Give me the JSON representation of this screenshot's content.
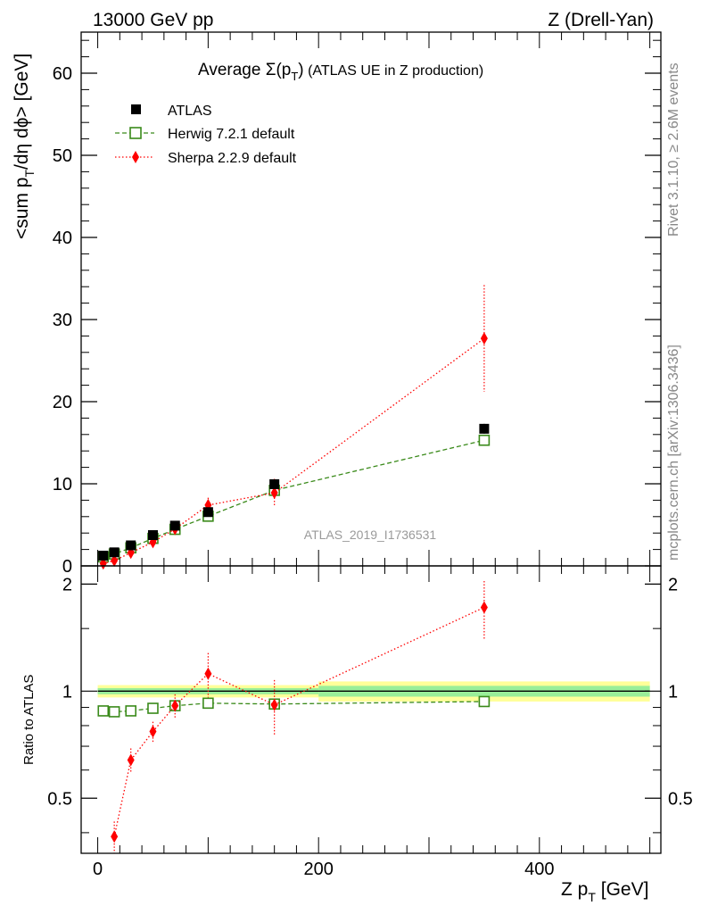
{
  "header": {
    "left": "13000 GeV pp",
    "right": "Z (Drell-Yan)"
  },
  "side_labels": {
    "rivet": "Rivet 3.1.10, ≥ 2.6M events",
    "mcplots": "mcplots.cern.ch [arXiv:1306.3436]"
  },
  "colors": {
    "atlas": "#000000",
    "herwig": "#3a8a1a",
    "sherpa": "#ff0000",
    "band_outer": "#ffff99",
    "band_inner": "#99ee99"
  },
  "chart_data": [
    {
      "type": "scatter",
      "title_main": "Average ",
      "title_sigma": "Σ(p",
      "title_sub": "T",
      "title_close": ")",
      "title_rest": " (ATLAS UE in Z production)",
      "ylabel": "<sum pₜ/dη dϕ> [GeV]",
      "ylabel_a": "<sum p",
      "ylabel_sub": "T",
      "ylabel_b": "/dη dϕ> [GeV]",
      "xlim": [
        -15,
        510
      ],
      "ylim": [
        0,
        65
      ],
      "yticks": [
        0,
        10,
        20,
        30,
        40,
        50,
        60
      ],
      "watermark": "ATLAS_2019_I1736531",
      "legend_position": "top-left",
      "series": [
        {
          "name": "ATLAS",
          "marker": "filled-square",
          "x": [
            5,
            15,
            30,
            50,
            70,
            100,
            160,
            350
          ],
          "y": [
            1.25,
            1.65,
            2.5,
            3.75,
            4.9,
            6.55,
            9.95,
            16.7
          ],
          "err": [
            0.1,
            0.1,
            0.1,
            0.15,
            0.2,
            0.3,
            0.4,
            0.6
          ]
        },
        {
          "name": "Herwig 7.2.1 default",
          "marker": "open-square",
          "line": "dashed",
          "x": [
            5,
            15,
            30,
            50,
            70,
            100,
            160,
            350
          ],
          "y": [
            1.1,
            1.45,
            2.2,
            3.35,
            4.45,
            6.05,
            9.2,
            15.3
          ],
          "err": [
            0.05,
            0.05,
            0.1,
            0.1,
            0.15,
            0.2,
            0.3,
            0.5
          ]
        },
        {
          "name": "Sherpa 2.2.9 default",
          "marker": "filled-diamond",
          "line": "dotted",
          "x": [
            5,
            15,
            30,
            50,
            70,
            100,
            160,
            350
          ],
          "y": [
            0.3,
            0.65,
            1.6,
            2.9,
            4.5,
            7.4,
            8.9,
            27.7
          ],
          "err": [
            0.05,
            0.1,
            0.2,
            0.3,
            0.5,
            0.9,
            1.7,
            6.5
          ]
        }
      ]
    },
    {
      "type": "scatter",
      "ylabel": "Ratio to ATLAS",
      "xlabel": "Z pₜ [GeV]",
      "xlabel_a": "Z p",
      "xlabel_sub": "T",
      "xlabel_b": " [GeV]",
      "xlim": [
        -15,
        510
      ],
      "ylim": [
        0.35,
        2.25
      ],
      "ylog": true,
      "yticks": [
        0.5,
        1,
        2
      ],
      "yticklabels": [
        "0.5",
        "1",
        "2"
      ],
      "xticks": [
        0,
        200,
        400
      ],
      "xticklabels": [
        "0",
        "200",
        "400"
      ],
      "reference_line": 1,
      "band_segments": [
        {
          "x": [
            0,
            200
          ],
          "inner": [
            0.98,
            1.02
          ],
          "outer": [
            0.96,
            1.04
          ]
        },
        {
          "x": [
            200,
            500
          ],
          "inner": [
            0.965,
            1.035
          ],
          "outer": [
            0.935,
            1.065
          ]
        }
      ],
      "series": [
        {
          "name": "Herwig 7.2.1 default",
          "marker": "open-square",
          "line": "dashed",
          "x": [
            5,
            15,
            30,
            50,
            70,
            100,
            160,
            350
          ],
          "y": [
            0.88,
            0.875,
            0.88,
            0.895,
            0.91,
            0.925,
            0.92,
            0.935
          ],
          "err": [
            0.01,
            0.01,
            0.01,
            0.01,
            0.015,
            0.02,
            0.02,
            0.02
          ]
        },
        {
          "name": "Sherpa 2.2.9 default",
          "marker": "filled-diamond",
          "line": "dotted",
          "x": [
            15,
            30,
            50,
            70,
            100,
            160,
            350
          ],
          "y": [
            0.39,
            0.64,
            0.77,
            0.91,
            1.12,
            0.915,
            1.72
          ],
          "err": [
            0.04,
            0.05,
            0.05,
            0.07,
            0.16,
            0.16,
            0.32
          ]
        }
      ]
    }
  ]
}
